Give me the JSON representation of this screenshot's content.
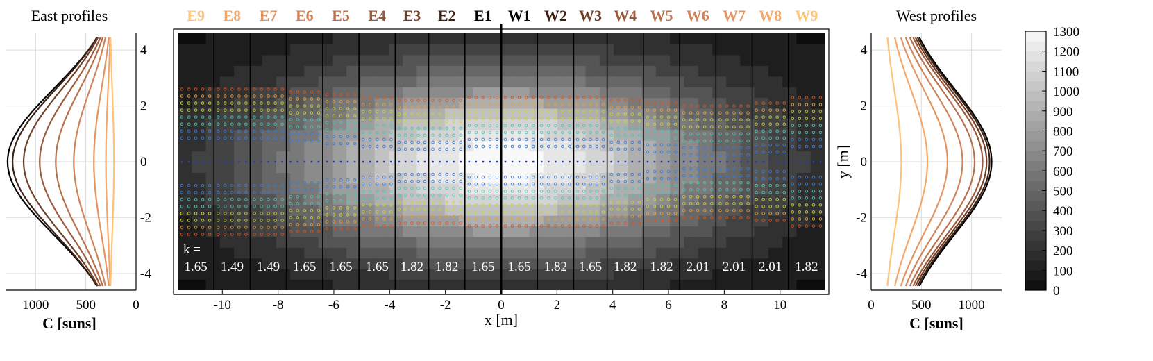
{
  "colors": {
    "panel_names": [
      "#fec47a",
      "#f5a869",
      "#e39460",
      "#cf8358",
      "#b8704c",
      "#9c5a3b",
      "#6e3f28",
      "#3d2215",
      "#000000"
    ],
    "profiles_east": [
      "#000000",
      "#3d2215",
      "#6e3f28",
      "#9c5a3b",
      "#b8704c",
      "#cf8358",
      "#e39460",
      "#f5a869",
      "#fec47a"
    ],
    "profiles_west": [
      "#fec47a",
      "#f5a869",
      "#e39460",
      "#cf8358",
      "#b8704c",
      "#9c5a3b",
      "#6e3f28",
      "#3d2215",
      "#000000"
    ]
  },
  "chart_data": [
    {
      "type": "line",
      "title": "East profiles",
      "xlabel": "C  [suns]",
      "ylabel": "",
      "xlim": [
        1300,
        0
      ],
      "ylim": [
        -4.6,
        4.6
      ],
      "x_reversed": true,
      "grid": true,
      "x_ticks": [
        1000,
        500,
        0
      ],
      "y_ticks": [
        4,
        2,
        0,
        -2,
        -4
      ],
      "y_axis_side": "right",
      "series_peak_C": [
        1280,
        1230,
        1120,
        960,
        800,
        620,
        420,
        300,
        220
      ],
      "series_width_m": 2.6
    },
    {
      "type": "heatmap",
      "xlabel": "x [m]",
      "ylabel": "y [m]",
      "xlim": [
        -11.6,
        11.6
      ],
      "ylim": [
        -4.6,
        4.6
      ],
      "x_ticks": [
        -10,
        -8,
        -6,
        -4,
        -2,
        0,
        2,
        4,
        6,
        8,
        10
      ],
      "y_ticks": [
        4,
        2,
        0,
        -2,
        -4
      ],
      "panel_names": [
        "E9",
        "E8",
        "E7",
        "E6",
        "E5",
        "E4",
        "E3",
        "E2",
        "E1",
        "W1",
        "W2",
        "W3",
        "W4",
        "W5",
        "W6",
        "W7",
        "W8",
        "W9"
      ],
      "panel_boundaries_x": [
        -11.6,
        -10.3,
        -9.0,
        -7.7,
        -6.4,
        -5.1,
        -3.8,
        -2.6,
        -1.3,
        0.0,
        1.3,
        2.6,
        3.8,
        5.1,
        6.4,
        7.7,
        9.0,
        10.3,
        11.6
      ],
      "k_label": "k =",
      "k_values": [
        "1.65",
        "1.49",
        "1.49",
        "1.65",
        "1.65",
        "1.65",
        "1.82",
        "1.82",
        "1.65",
        "1.65",
        "1.82",
        "1.65",
        "1.82",
        "1.82",
        "2.01",
        "2.01",
        "2.01",
        "1.82"
      ],
      "field": {
        "peak_C": 1300,
        "center": [
          0,
          0
        ],
        "sigma_x_m": 6.0,
        "sigma_y_m": 2.4
      },
      "annotations": {
        "panel_measurement_extent_y": [
          2.6,
          2.6,
          2.6,
          2.5,
          2.4,
          2.3,
          2.2,
          2.2,
          2.3,
          2.3,
          2.3,
          2.3,
          2.2,
          2.1,
          2.0,
          2.0,
          2.1,
          2.3
        ]
      }
    },
    {
      "type": "line",
      "title": "West profiles",
      "xlabel": "C  [suns]",
      "ylabel": "y [m]",
      "xlim": [
        0,
        1300
      ],
      "ylim": [
        -4.6,
        4.6
      ],
      "grid": true,
      "x_ticks": [
        0,
        500,
        1000
      ],
      "y_ticks": [
        4,
        2,
        0,
        -2,
        -4
      ],
      "series_peak_C": [
        300,
        560,
        760,
        910,
        1030,
        1110,
        1150,
        1180,
        1200
      ],
      "series_width_m": 2.6
    },
    {
      "type": "colorbar",
      "clim": [
        0,
        1300
      ],
      "ticks": [
        0,
        100,
        200,
        300,
        400,
        500,
        600,
        700,
        800,
        900,
        1000,
        1100,
        1200,
        1300
      ],
      "tick_labels": [
        "0",
        "100",
        "200",
        "300",
        "400",
        "500",
        "600",
        "700",
        "800",
        "900",
        "1000",
        "1100",
        "1200",
        "1300"
      ]
    }
  ]
}
